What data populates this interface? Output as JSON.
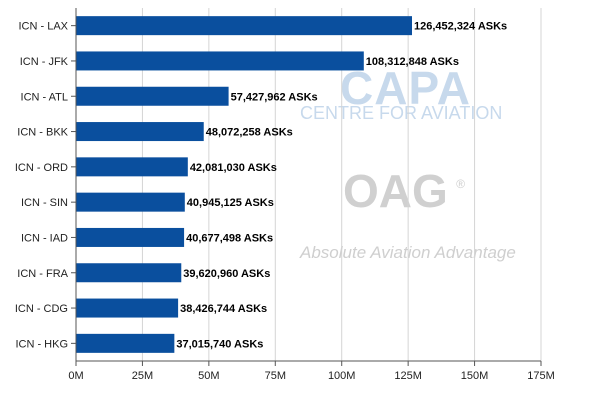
{
  "watermarks": {
    "capa": "CAPA",
    "capa_sub": "CENTRE FOR AVIATION",
    "oag": "OAG",
    "oag_mark": "®",
    "oag_sub": "Absolute Aviation Advantage"
  },
  "colors": {
    "bar": "#0a4f9e",
    "grid": "#d4d4d4",
    "axis": "#555555"
  },
  "chart_data": {
    "type": "bar",
    "orientation": "horizontal",
    "title": "",
    "xlabel": "",
    "ylabel": "",
    "categories": [
      "ICN - LAX",
      "ICN - JFK",
      "ICN - ATL",
      "ICN - BKK",
      "ICN - ORD",
      "ICN - SIN",
      "ICN - IAD",
      "ICN - FRA",
      "ICN - CDG",
      "ICN - HKG"
    ],
    "values": [
      126452324,
      108312848,
      57427962,
      48072258,
      42081030,
      40945125,
      40677498,
      39620960,
      38426744,
      37015740
    ],
    "data_labels": [
      "126,452,324 ASKs",
      "108,312,848 ASKs",
      "57,427,962 ASKs",
      "48,072,258 ASKs",
      "42,081,030 ASKs",
      "40,945,125 ASKs",
      "40,677,498 ASKs",
      "39,620,960 ASKs",
      "38,426,744 ASKs",
      "37,015,740 ASKs"
    ],
    "xlim": [
      0,
      175000000
    ],
    "xticks": [
      0,
      25000000,
      50000000,
      75000000,
      100000000,
      125000000,
      150000000,
      175000000
    ],
    "xtick_labels": [
      "0M",
      "25M",
      "50M",
      "75M",
      "100M",
      "125M",
      "150M",
      "175M"
    ],
    "grid": true,
    "legend": "none"
  }
}
